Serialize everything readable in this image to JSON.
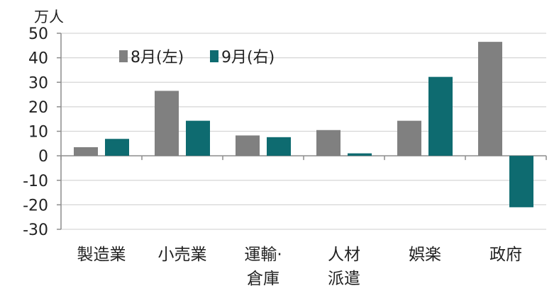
{
  "chart_data": {
    "type": "bar",
    "unit": "万人",
    "categories": [
      [
        "製造業"
      ],
      [
        "小売業"
      ],
      [
        "運輸·",
        "倉庫"
      ],
      [
        "人材",
        "派遣"
      ],
      [
        "娯楽"
      ],
      [
        "政府"
      ]
    ],
    "series": [
      {
        "name": "8月(左)",
        "color": "#808080",
        "values": [
          3.5,
          26.5,
          8.3,
          10.5,
          14.3,
          46.5
        ]
      },
      {
        "name": "9月(右)",
        "color": "#0e6b70",
        "values": [
          6.9,
          14.3,
          7.6,
          1.0,
          32.2,
          -21.0
        ]
      }
    ],
    "ylim": [
      -30,
      50
    ],
    "yticks": [
      50,
      40,
      30,
      20,
      10,
      0,
      -10,
      -20,
      -30
    ],
    "grid": true,
    "legend": "top-left"
  }
}
